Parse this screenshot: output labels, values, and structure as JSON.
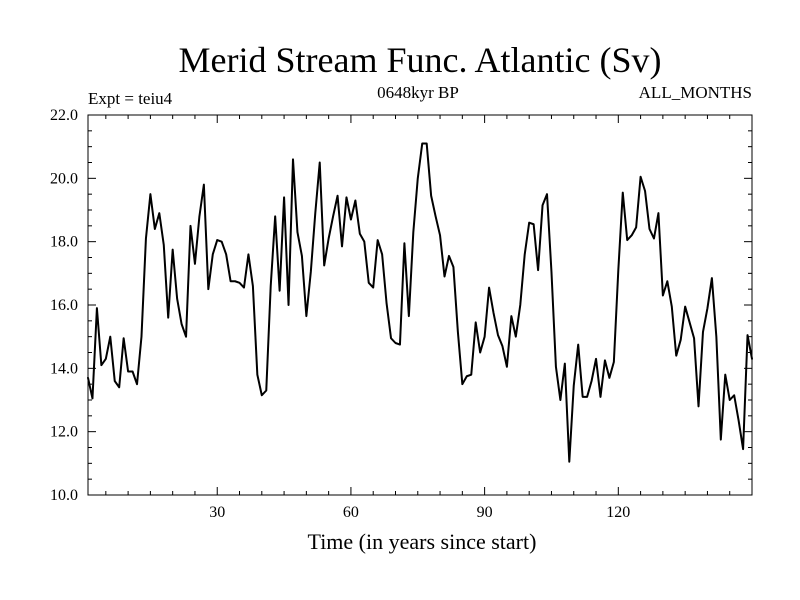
{
  "chart_data": {
    "type": "line",
    "title": "Merid Stream Func. Atlantic (Sv)",
    "experiment_label": "Expt = teiu4",
    "period_label": "0648kyr BP",
    "months_label": "ALL_MONTHS",
    "xlabel": "Time (in years since start)",
    "ylabel": "",
    "xlim": [
      1,
      150
    ],
    "ylim": [
      10.0,
      22.0
    ],
    "x_ticks": [
      30,
      60,
      90,
      120
    ],
    "x_tick_labels": [
      "30",
      "60",
      "90",
      "120"
    ],
    "y_ticks": [
      10.0,
      12.0,
      14.0,
      16.0,
      18.0,
      20.0,
      22.0
    ],
    "y_tick_labels": [
      "10.0",
      "12.0",
      "14.0",
      "16.0",
      "18.0",
      "20.0",
      "22.0"
    ],
    "x_minor_step": 5,
    "y_minor_step": 0.5,
    "series": [
      {
        "name": "Merid Stream Func. Atlantic",
        "x": [
          1,
          2,
          3,
          4,
          5,
          6,
          7,
          8,
          9,
          10,
          11,
          12,
          13,
          14,
          15,
          16,
          17,
          18,
          19,
          20,
          21,
          22,
          23,
          24,
          25,
          26,
          27,
          28,
          29,
          30,
          31,
          32,
          33,
          34,
          35,
          36,
          37,
          38,
          39,
          40,
          41,
          42,
          43,
          44,
          45,
          46,
          47,
          48,
          49,
          50,
          51,
          52,
          53,
          54,
          55,
          56,
          57,
          58,
          59,
          60,
          61,
          62,
          63,
          64,
          65,
          66,
          67,
          68,
          69,
          70,
          71,
          72,
          73,
          74,
          75,
          76,
          77,
          78,
          79,
          80,
          81,
          82,
          83,
          84,
          85,
          86,
          87,
          88,
          89,
          90,
          91,
          92,
          93,
          94,
          95,
          96,
          97,
          98,
          99,
          100,
          101,
          102,
          103,
          104,
          105,
          106,
          107,
          108,
          109,
          110,
          111,
          112,
          113,
          114,
          115,
          116,
          117,
          118,
          119,
          120,
          121,
          122,
          123,
          124,
          125,
          126,
          127,
          128,
          129,
          130,
          131,
          132,
          133,
          134,
          135,
          136,
          137,
          138,
          139,
          140,
          141,
          142,
          143,
          144,
          145,
          146,
          147,
          148,
          149,
          150
        ],
        "values": [
          13.7,
          13.05,
          15.9,
          14.1,
          14.3,
          15.0,
          13.6,
          13.4,
          14.95,
          13.9,
          13.9,
          13.5,
          15.0,
          18.1,
          19.5,
          18.4,
          18.9,
          17.9,
          15.6,
          17.75,
          16.2,
          15.4,
          15.0,
          18.5,
          17.3,
          18.8,
          19.8,
          16.5,
          17.6,
          18.05,
          18.0,
          17.6,
          16.75,
          16.75,
          16.7,
          16.55,
          17.6,
          16.6,
          13.8,
          13.15,
          13.3,
          16.6,
          18.8,
          16.45,
          19.4,
          16.0,
          20.6,
          18.3,
          17.55,
          15.65,
          17.05,
          18.9,
          20.5,
          17.25,
          18.1,
          18.8,
          19.45,
          17.85,
          19.4,
          18.7,
          19.3,
          18.25,
          18.0,
          16.7,
          16.55,
          18.05,
          17.6,
          16.05,
          14.95,
          14.8,
          14.75,
          17.95,
          15.65,
          18.3,
          20.0,
          21.1,
          21.1,
          19.45,
          18.8,
          18.2,
          16.9,
          17.55,
          17.2,
          15.15,
          13.5,
          13.75,
          13.8,
          15.45,
          14.5,
          15.0,
          16.55,
          15.75,
          15.05,
          14.7,
          14.05,
          15.65,
          15.0,
          16.0,
          17.6,
          18.6,
          18.55,
          17.1,
          19.15,
          19.5,
          17.05,
          14.05,
          13.0,
          14.15,
          11.05,
          13.45,
          14.75,
          13.1,
          13.1,
          13.6,
          14.3,
          13.1,
          14.25,
          13.7,
          14.2,
          17.1,
          19.55,
          18.05,
          18.2,
          18.45,
          20.05,
          19.6,
          18.4,
          18.1,
          18.9,
          16.3,
          16.75,
          15.95,
          14.4,
          14.9,
          15.95,
          15.45,
          14.95,
          12.8,
          15.15,
          15.9,
          16.85,
          15.0,
          11.75,
          13.8,
          13.0,
          13.15,
          12.35,
          11.45,
          15.05,
          14.3
        ]
      }
    ]
  }
}
